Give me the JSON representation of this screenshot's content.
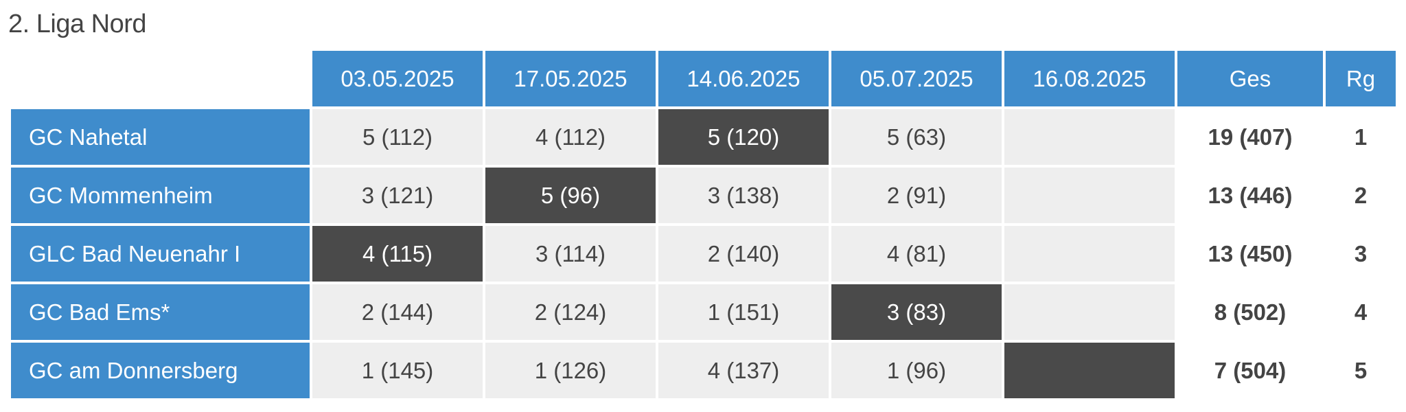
{
  "title": "2. Liga Nord",
  "table": {
    "columns": [
      "03.05.2025",
      "17.05.2025",
      "14.06.2025",
      "05.07.2025",
      "16.08.2025"
    ],
    "total_header": "Ges",
    "rank_header": "Rg",
    "rows": [
      {
        "team": "GC Nahetal",
        "results": [
          "5 (112)",
          "4 (112)",
          "5 (120)",
          "5 (63)",
          null
        ],
        "highlight": 2,
        "total": "19 (407)",
        "rank": 1
      },
      {
        "team": "GC Mommenheim",
        "results": [
          "3 (121)",
          "5 (96)",
          "3 (138)",
          "2 (91)",
          null
        ],
        "highlight": 1,
        "total": "13 (446)",
        "rank": 2
      },
      {
        "team": "GLC Bad Neuenahr I",
        "results": [
          "4 (115)",
          "3 (114)",
          "2 (140)",
          "4 (81)",
          null
        ],
        "highlight": 0,
        "total": "13 (450)",
        "rank": 3
      },
      {
        "team": "GC Bad Ems*",
        "results": [
          "2 (144)",
          "2 (124)",
          "1 (151)",
          "3 (83)",
          null
        ],
        "highlight": 3,
        "total": "8 (502)",
        "rank": 4
      },
      {
        "team": "GC am Donnersberg",
        "results": [
          "1 (145)",
          "1 (126)",
          "4 (137)",
          "1 (96)",
          null
        ],
        "highlight": 4,
        "total": "7 (504)",
        "rank": 5
      }
    ]
  }
}
